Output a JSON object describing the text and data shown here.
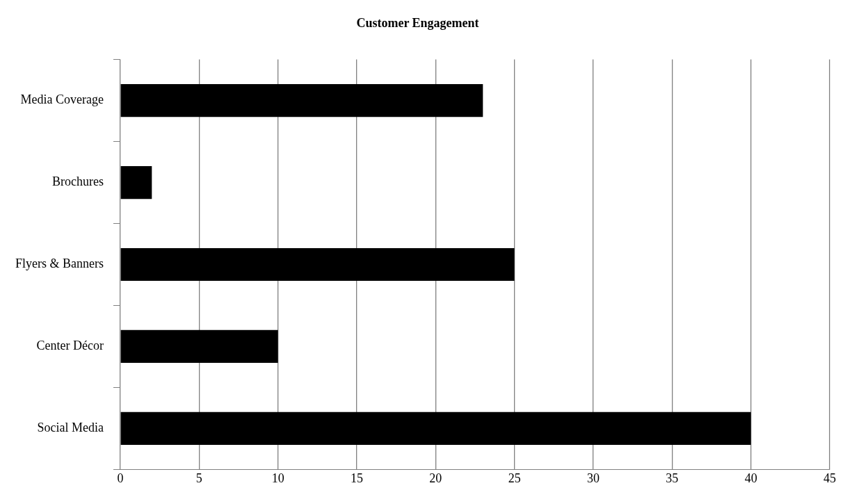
{
  "chart_data": {
    "type": "bar",
    "orientation": "horizontal",
    "title": "Customer Engagement",
    "categories": [
      "Media Coverage",
      "Brochures",
      "Flyers & Banners",
      "Center Décor",
      "Social Media"
    ],
    "values": [
      23,
      2,
      25,
      10,
      40
    ],
    "color": "#000000",
    "xlim": [
      0,
      45
    ],
    "xticks": [
      0,
      5,
      10,
      15,
      20,
      25,
      30,
      35,
      40,
      45
    ],
    "grid": "x",
    "legend": false
  }
}
